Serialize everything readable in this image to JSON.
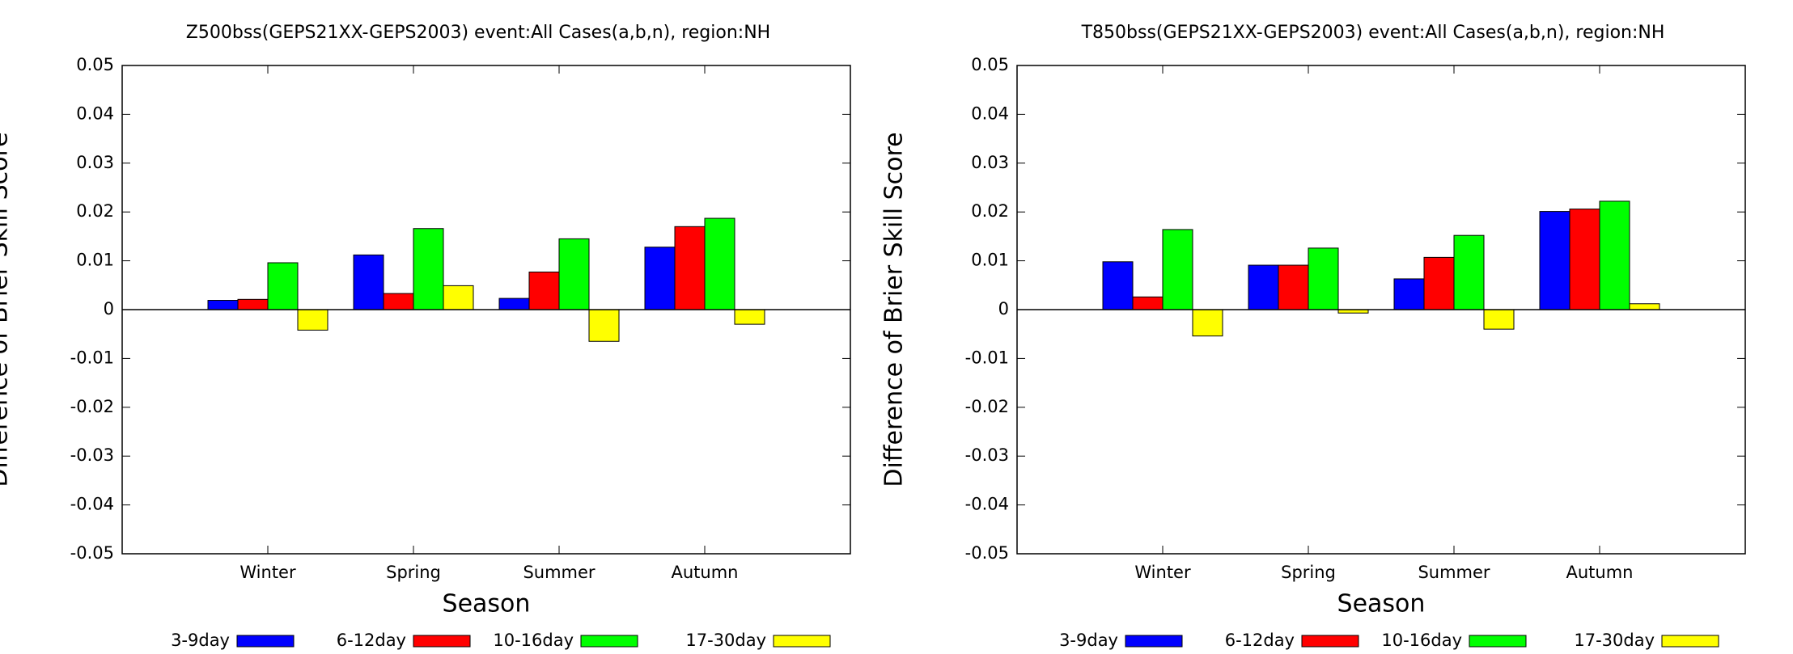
{
  "chart_data": [
    {
      "type": "bar",
      "title": "Z500bss(GEPS21XX-GEPS2003) event:All Cases(a,b,n), region:NH",
      "xlabel": "Season",
      "ylabel": "Difference of Brier Skill Score",
      "categories": [
        "Winter",
        "Spring",
        "Summer",
        "Autumn"
      ],
      "series": [
        {
          "name": "3-9day",
          "color": "#0000ff",
          "values": [
            0.0019,
            0.0112,
            0.0023,
            0.0128
          ]
        },
        {
          "name": "6-12day",
          "color": "#ff0000",
          "values": [
            0.0021,
            0.0033,
            0.0077,
            0.017
          ]
        },
        {
          "name": "10-16day",
          "color": "#00ff00",
          "values": [
            0.0096,
            0.0166,
            0.0145,
            0.0187
          ]
        },
        {
          "name": "17-30day",
          "color": "#ffff00",
          "values": [
            -0.0042,
            0.0049,
            -0.0065,
            -0.003
          ]
        }
      ],
      "ylim": [
        -0.05,
        0.05
      ],
      "yticks": [
        0.05,
        0.04,
        0.03,
        0.02,
        0.01,
        0,
        -0.01,
        -0.02,
        -0.03,
        -0.04,
        -0.05
      ],
      "legend": "bottom"
    },
    {
      "type": "bar",
      "title": "T850bss(GEPS21XX-GEPS2003) event:All Cases(a,b,n), region:NH",
      "xlabel": "Season",
      "ylabel": "Difference of Brier Skill Score",
      "categories": [
        "Winter",
        "Spring",
        "Summer",
        "Autumn"
      ],
      "series": [
        {
          "name": "3-9day",
          "color": "#0000ff",
          "values": [
            0.0098,
            0.0091,
            0.0063,
            0.0201
          ]
        },
        {
          "name": "6-12day",
          "color": "#ff0000",
          "values": [
            0.0026,
            0.0091,
            0.0107,
            0.0206
          ]
        },
        {
          "name": "10-16day",
          "color": "#00ff00",
          "values": [
            0.0164,
            0.0126,
            0.0152,
            0.0222
          ]
        },
        {
          "name": "17-30day",
          "color": "#ffff00",
          "values": [
            -0.0054,
            -0.0007,
            -0.004,
            0.0012
          ]
        }
      ],
      "ylim": [
        -0.05,
        0.05
      ],
      "yticks": [
        0.05,
        0.04,
        0.03,
        0.02,
        0.01,
        0,
        -0.01,
        -0.02,
        -0.03,
        -0.04,
        -0.05
      ],
      "legend": "bottom"
    }
  ]
}
